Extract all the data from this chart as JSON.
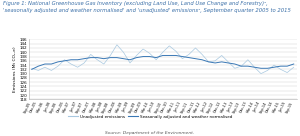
{
  "title_line1": "Figure 1: National Greenhouse Gas Inventory (excluding Land Use, Land Use Change and Forestry)²,",
  "title_line2": "'seasonally adjusted and weather normalised' and 'unadjusted' emissions², September quarter 2005 to 2015",
  "ylabel": "Emissions (Mt CO₂-e)",
  "source": "Source: Department of the Environment.",
  "ylim": [
    118,
    146
  ],
  "yticks": [
    118,
    120,
    122,
    124,
    126,
    128,
    130,
    132,
    134,
    136,
    138,
    140,
    142,
    144,
    146
  ],
  "x_labels": [
    "Sep-05",
    "Dec-05",
    "Mar-06",
    "Jun-06",
    "Sep-06",
    "Dec-06",
    "Mar-07",
    "Jun-07",
    "Sep-07",
    "Dec-07",
    "Mar-08",
    "Jun-08",
    "Sep-08",
    "Dec-08",
    "Mar-09",
    "Jun-09",
    "Sep-09",
    "Dec-09",
    "Mar-10",
    "Jun-10",
    "Sep-10",
    "Dec-10",
    "Mar-11",
    "Jun-11",
    "Sep-11",
    "Dec-11",
    "Mar-12",
    "Jun-12",
    "Sep-12",
    "Dec-12",
    "Mar-13",
    "Jun-13",
    "Sep-13",
    "Dec-13",
    "Mar-14",
    "Jun-14",
    "Sep-14",
    "Dec-14",
    "Mar-15",
    "Jun-15",
    "Sep-15"
  ],
  "unadjusted": [
    132.5,
    131.5,
    133.0,
    131.5,
    133.5,
    136.5,
    134.5,
    133.0,
    135.0,
    139.0,
    136.5,
    134.5,
    138.5,
    143.5,
    140.0,
    135.0,
    138.5,
    141.5,
    139.5,
    136.5,
    140.0,
    143.0,
    140.5,
    137.0,
    139.0,
    142.0,
    139.0,
    135.5,
    136.0,
    138.5,
    135.5,
    132.5,
    133.5,
    136.5,
    133.0,
    130.0,
    131.5,
    134.0,
    132.0,
    130.5,
    133.0
  ],
  "seasonal": [
    132.0,
    133.5,
    134.5,
    134.5,
    135.5,
    136.0,
    136.5,
    136.5,
    137.0,
    137.5,
    137.5,
    137.0,
    137.5,
    137.5,
    137.0,
    136.5,
    137.5,
    138.0,
    138.0,
    137.5,
    138.5,
    138.5,
    138.5,
    138.0,
    137.5,
    137.0,
    136.5,
    135.5,
    135.0,
    135.5,
    135.0,
    134.5,
    133.5,
    133.5,
    133.0,
    132.5,
    132.5,
    133.0,
    133.5,
    133.5,
    134.5
  ],
  "unadjusted_color": "#a8c8e0",
  "seasonal_color": "#3a78b5",
  "background_color": "#ffffff",
  "legend_unadjusted": "Unadjusted emissions",
  "legend_seasonal": "Seasonally adjusted and weather normalised",
  "title_color": "#3a6fa8",
  "source_color": "#555555"
}
